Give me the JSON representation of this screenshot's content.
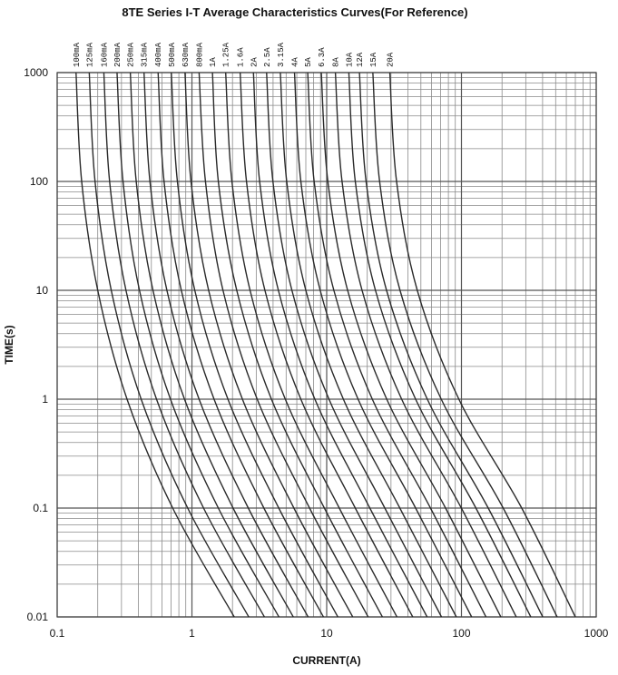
{
  "chart_data": {
    "type": "line",
    "title": "8TE Series  I-T  Average Characteristics Curves(For Reference)",
    "x_label": "CURRENT(A)",
    "y_label": "TIME(s)",
    "xscale": "log",
    "yscale": "log",
    "xlim": [
      0.1,
      1000
    ],
    "ylim": [
      0.01,
      1000
    ],
    "xticks": [
      0.1,
      1,
      10,
      100,
      1000
    ],
    "yticks": [
      0.01,
      0.1,
      1,
      10,
      100,
      1000
    ],
    "grid": true,
    "minor_grid": true,
    "color": "#2a2a2a",
    "series": [
      {
        "name": "100mA",
        "x": [
          0.138,
          0.152,
          0.2,
          0.33,
          0.72,
          2.06
        ],
        "values": [
          1000,
          100,
          10,
          1,
          0.1,
          0.01
        ]
      },
      {
        "name": "125mA",
        "x": [
          0.173,
          0.191,
          0.252,
          0.42,
          0.93,
          2.64
        ],
        "values": [
          1000,
          100,
          10,
          1,
          0.1,
          0.01
        ]
      },
      {
        "name": "160mA",
        "x": [
          0.222,
          0.245,
          0.324,
          0.546,
          1.22,
          3.45
        ],
        "values": [
          1000,
          100,
          10,
          1,
          0.1,
          0.01
        ]
      },
      {
        "name": "200mA",
        "x": [
          0.278,
          0.308,
          0.408,
          0.693,
          1.57,
          4.42
        ],
        "values": [
          1000,
          100,
          10,
          1,
          0.1,
          0.01
        ]
      },
      {
        "name": "250mA",
        "x": [
          0.349,
          0.386,
          0.514,
          0.881,
          2.02,
          5.65
        ],
        "values": [
          1000,
          100,
          10,
          1,
          0.1,
          0.01
        ]
      },
      {
        "name": "315mA",
        "x": [
          0.441,
          0.488,
          0.652,
          1.13,
          2.62,
          7.28
        ],
        "values": [
          1000,
          100,
          10,
          1,
          0.1,
          0.01
        ]
      },
      {
        "name": "400mA",
        "x": [
          0.561,
          0.621,
          0.834,
          1.46,
          3.42,
          9.46
        ],
        "values": [
          1000,
          100,
          10,
          1,
          0.1,
          0.01
        ]
      },
      {
        "name": "500mA",
        "x": [
          0.703,
          0.78,
          1.05,
          1.85,
          4.41,
          12.1
        ],
        "values": [
          1000,
          100,
          10,
          1,
          0.1,
          0.01
        ]
      },
      {
        "name": "630mA",
        "x": [
          0.888,
          0.984,
          1.33,
          2.37,
          5.71,
          15.6
        ],
        "values": [
          1000,
          100,
          10,
          1,
          0.1,
          0.01
        ]
      },
      {
        "name": "800mA",
        "x": [
          1.13,
          1.26,
          1.7,
          3.05,
          7.46,
          20.3
        ],
        "values": [
          1000,
          100,
          10,
          1,
          0.1,
          0.01
        ]
      },
      {
        "name": "1A",
        "x": [
          1.42,
          1.57,
          2.15,
          3.89,
          9.61,
          25.9
        ],
        "values": [
          1000,
          100,
          10,
          1,
          0.1,
          0.01
        ]
      },
      {
        "name": "1.25A",
        "x": [
          1.78,
          1.98,
          2.7,
          4.93,
          12.4,
          33.2
        ],
        "values": [
          1000,
          100,
          10,
          1,
          0.1,
          0.01
        ]
      },
      {
        "name": "1.6A",
        "x": [
          2.28,
          2.54,
          3.48,
          6.43,
          16.3,
          43.5
        ],
        "values": [
          1000,
          100,
          10,
          1,
          0.1,
          0.01
        ]
      },
      {
        "name": "2A",
        "x": [
          2.86,
          3.18,
          4.38,
          8.17,
          20.9,
          55.6
        ],
        "values": [
          1000,
          100,
          10,
          1,
          0.1,
          0.01
        ]
      },
      {
        "name": "2.5A",
        "x": [
          3.58,
          3.99,
          5.52,
          10.4,
          27.0,
          71.1
        ],
        "values": [
          1000,
          100,
          10,
          1,
          0.1,
          0.01
        ]
      },
      {
        "name": "3.15A",
        "x": [
          4.53,
          5.05,
          7.0,
          13.3,
          34.9,
          91.6
        ],
        "values": [
          1000,
          100,
          10,
          1,
          0.1,
          0.01
        ]
      },
      {
        "name": "4A",
        "x": [
          5.77,
          6.43,
          8.95,
          17.1,
          45.7,
          119
        ],
        "values": [
          1000,
          100,
          10,
          1,
          0.1,
          0.01
        ]
      },
      {
        "name": "5A",
        "x": [
          7.23,
          8.07,
          11.3,
          21.8,
          58.9,
          152
        ],
        "values": [
          1000,
          100,
          10,
          1,
          0.1,
          0.01
        ]
      },
      {
        "name": "6.3A",
        "x": [
          9.12,
          10.2,
          14.3,
          27.9,
          76.2,
          196
        ],
        "values": [
          1000,
          100,
          10,
          1,
          0.1,
          0.01
        ]
      },
      {
        "name": "8A",
        "x": [
          11.6,
          13.0,
          18.3,
          36.0,
          99.8,
          255
        ],
        "values": [
          1000,
          100,
          10,
          1,
          0.1,
          0.01
        ]
      },
      {
        "name": "10A",
        "x": [
          14.6,
          16.3,
          23.0,
          45.7,
          128,
          327
        ],
        "values": [
          1000,
          100,
          10,
          1,
          0.1,
          0.01
        ]
      },
      {
        "name": "12A",
        "x": [
          17.5,
          19.6,
          27.8,
          55.8,
          158,
          401
        ],
        "values": [
          1000,
          100,
          10,
          1,
          0.1,
          0.01
        ]
      },
      {
        "name": "15A",
        "x": [
          22.0,
          24.7,
          35.0,
          70.8,
          204,
          513
        ],
        "values": [
          1000,
          100,
          10,
          1,
          0.1,
          0.01
        ]
      },
      {
        "name": "20A",
        "x": [
          29.4,
          33.0,
          47.0,
          95.7,
          280,
          700
        ],
        "values": [
          1000,
          100,
          10,
          1,
          0.1,
          0.01
        ]
      }
    ]
  }
}
